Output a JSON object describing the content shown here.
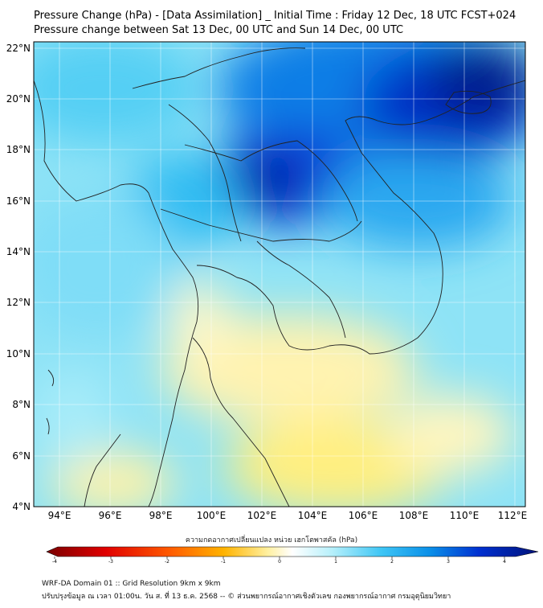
{
  "header": {
    "title": "Pressure Change (hPa) - [Data Assimilation] _ Initial Time : Friday 12 Dec, 18 UTC FCST+024",
    "subtitle": "Pressure change between Sat 13 Dec, 00 UTC and Sun 14 Dec, 00 UTC"
  },
  "map": {
    "lat_labels": [
      "4°N",
      "6°N",
      "8°N",
      "10°N",
      "12°N",
      "14°N",
      "16°N",
      "18°N",
      "20°N",
      "22°N"
    ],
    "lon_labels": [
      "94°E",
      "96°E",
      "98°E",
      "100°E",
      "102°E",
      "104°E",
      "106°E",
      "108°E",
      "110°E",
      "112°E"
    ]
  },
  "colorbar": {
    "label": "ความกดอากาศเปลี่ยนแปลง หน่วย เฮกโตพาสคัล (hPa)",
    "ticks": [
      "-4",
      "-3",
      "-2",
      "-1",
      "0",
      "1",
      "2",
      "3",
      "4"
    ]
  },
  "footer": {
    "line1": "WRF-DA Domain 01 :: Grid Resolution 9km x 9km",
    "line2": "ปรับปรุงข้อมูล ณ เวลา 01:00น. วัน ส. ที่ 13 ธ.ค. 2568 -- © ส่วนพยากรณ์อากาศเชิงตัวเลข กองพยากรณ์อากาศ กรมอุตุนิยมวิทยา"
  },
  "colors": {
    "positive_high": "#00137a",
    "positive_mid": "#1aa9f2",
    "positive_low": "#8fe6f8",
    "neutral": "#ffffff",
    "negative_low": "#fff4a8",
    "negative_mid": "#f5a800",
    "negative_high": "#7a0000",
    "coastline": "#222222"
  }
}
